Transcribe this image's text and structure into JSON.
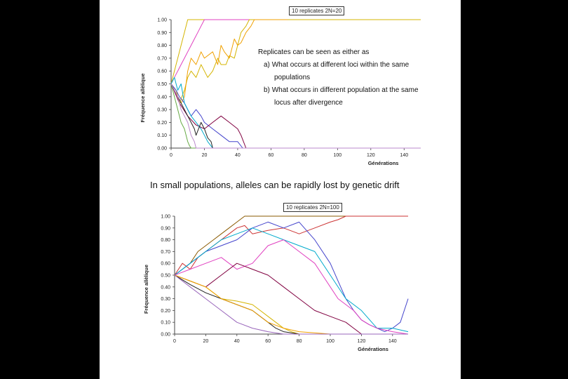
{
  "chart_data": [
    {
      "type": "line",
      "title": "10 replicates 2N=20",
      "xlabel": "Générations",
      "ylabel": "Fréquence allèlique",
      "xlim": [
        0,
        150
      ],
      "ylim": [
        0,
        1
      ],
      "x_ticks": [
        "0",
        "20",
        "40",
        "60",
        "80",
        "100",
        "120",
        "140"
      ],
      "y_ticks": [
        "0.00",
        "0.10",
        "0.20",
        "0.30",
        "0.40",
        "0.50",
        "0.60",
        "0.70",
        "0.80",
        "0.90",
        "1.00"
      ],
      "series": [
        {
          "name": "rep1",
          "color": "#d4b400",
          "x": [
            0,
            2,
            4,
            6,
            8,
            10,
            12,
            14,
            15,
            16,
            18,
            20,
            25,
            30,
            35,
            40,
            45,
            50,
            60,
            80,
            100,
            120,
            150
          ],
          "y": [
            0.5,
            0.6,
            0.7,
            0.8,
            0.9,
            1,
            1,
            1,
            1,
            1,
            1,
            1,
            1,
            1,
            1,
            1,
            1,
            1,
            1,
            1,
            1,
            1,
            1
          ]
        },
        {
          "name": "rep2",
          "color": "#e040c0",
          "x": [
            0,
            2,
            4,
            6,
            8,
            10,
            12,
            14,
            16,
            18,
            20,
            22,
            25,
            30,
            40,
            60,
            100,
            150
          ],
          "y": [
            0.5,
            0.55,
            0.6,
            0.65,
            0.7,
            0.75,
            0.8,
            0.85,
            0.9,
            0.95,
            1,
            1,
            1,
            1,
            1,
            1,
            1,
            1
          ]
        },
        {
          "name": "rep3",
          "color": "#d4b400",
          "x": [
            0,
            3,
            5,
            8,
            10,
            12,
            15,
            18,
            20,
            22,
            25,
            28,
            30,
            33,
            35,
            38,
            40,
            42,
            45,
            47,
            48,
            50,
            60,
            150
          ],
          "y": [
            0.5,
            0.45,
            0.35,
            0.45,
            0.55,
            0.6,
            0.55,
            0.65,
            0.6,
            0.55,
            0.6,
            0.7,
            0.65,
            0.65,
            0.72,
            0.7,
            0.8,
            0.9,
            0.95,
            1,
            1,
            1,
            1,
            1
          ]
        },
        {
          "name": "rep4",
          "color": "#f0a000",
          "x": [
            0,
            2,
            4,
            6,
            8,
            10,
            12,
            15,
            18,
            20,
            25,
            28,
            30,
            32,
            35,
            38,
            40,
            42,
            45,
            48,
            50,
            52,
            55,
            58,
            60,
            65,
            70
          ],
          "y": [
            0.5,
            0.45,
            0.4,
            0.35,
            0.4,
            0.6,
            0.7,
            0.65,
            0.75,
            0.7,
            0.75,
            0.65,
            0.8,
            0.75,
            0.7,
            0.85,
            0.8,
            0.82,
            0.9,
            0.95,
            1,
            1,
            1,
            1,
            1,
            1,
            1
          ]
        },
        {
          "name": "rep5",
          "color": "#4444cc",
          "x": [
            0,
            3,
            5,
            8,
            10,
            12,
            15,
            18,
            20,
            25,
            30,
            35,
            40,
            43,
            45,
            150
          ],
          "y": [
            0.5,
            0.45,
            0.4,
            0.35,
            0.3,
            0.25,
            0.3,
            0.25,
            0.2,
            0.15,
            0.1,
            0.05,
            0.05,
            0,
            0,
            0
          ]
        },
        {
          "name": "rep6",
          "color": "#800040",
          "x": [
            0,
            5,
            10,
            15,
            20,
            25,
            30,
            35,
            40,
            42,
            45,
            150
          ],
          "y": [
            0.5,
            0.35,
            0.25,
            0.18,
            0.15,
            0.2,
            0.25,
            0.2,
            0.15,
            0.1,
            0,
            0
          ]
        },
        {
          "name": "rep7",
          "color": "#00aacc",
          "x": [
            0,
            2,
            4,
            6,
            8,
            10,
            12,
            15,
            18,
            20,
            22,
            25,
            150
          ],
          "y": [
            0.5,
            0.55,
            0.45,
            0.5,
            0.35,
            0.3,
            0.25,
            0.2,
            0.15,
            0.1,
            0.05,
            0,
            0
          ]
        },
        {
          "name": "rep8",
          "color": "#222222",
          "x": [
            0,
            2,
            4,
            6,
            8,
            10,
            12,
            14,
            15,
            18,
            20,
            22,
            24,
            25,
            150
          ],
          "y": [
            0.5,
            0.45,
            0.4,
            0.35,
            0.3,
            0.25,
            0.2,
            0.15,
            0.1,
            0.2,
            0.15,
            0.08,
            0.05,
            0,
            0
          ]
        },
        {
          "name": "rep9",
          "color": "#66aa44",
          "x": [
            0,
            2,
            4,
            6,
            8,
            10,
            11,
            12,
            150
          ],
          "y": [
            0.5,
            0.4,
            0.3,
            0.2,
            0.15,
            0.05,
            0.02,
            0,
            0
          ]
        },
        {
          "name": "rep10",
          "color": "#bb88cc",
          "x": [
            0,
            2,
            4,
            6,
            8,
            10,
            12,
            14,
            15,
            150
          ],
          "y": [
            0.5,
            0.45,
            0.4,
            0.3,
            0.25,
            0.2,
            0.1,
            0.05,
            0,
            0
          ]
        }
      ]
    },
    {
      "type": "line",
      "title": "10 replicates 2N=100",
      "xlabel": "Générations",
      "ylabel": "Fréquence allèlique",
      "xlim": [
        0,
        150
      ],
      "ylim": [
        0,
        1
      ],
      "x_ticks": [
        "0",
        "20",
        "40",
        "60",
        "80",
        "100",
        "120",
        "140"
      ],
      "y_ticks": [
        "0.00",
        "0.10",
        "0.20",
        "0.30",
        "0.40",
        "0.50",
        "0.60",
        "0.70",
        "0.80",
        "0.90",
        "1.00"
      ],
      "series": [
        {
          "name": "rep1",
          "color": "#8a5a00",
          "x": [
            0,
            5,
            10,
            15,
            20,
            25,
            30,
            35,
            40,
            45,
            50,
            60,
            80,
            100,
            120,
            150
          ],
          "y": [
            0.5,
            0.55,
            0.6,
            0.7,
            0.75,
            0.8,
            0.85,
            0.9,
            0.95,
            1,
            1,
            1,
            1,
            1,
            1,
            1
          ]
        },
        {
          "name": "rep2",
          "color": "#cc3333",
          "x": [
            0,
            5,
            10,
            15,
            20,
            25,
            30,
            35,
            40,
            45,
            50,
            60,
            70,
            80,
            90,
            100,
            105,
            110,
            150
          ],
          "y": [
            0.5,
            0.6,
            0.55,
            0.65,
            0.7,
            0.75,
            0.8,
            0.85,
            0.9,
            0.92,
            0.85,
            0.88,
            0.9,
            0.85,
            0.9,
            0.95,
            0.97,
            1,
            1
          ]
        },
        {
          "name": "rep3",
          "color": "#4444cc",
          "x": [
            0,
            10,
            20,
            30,
            40,
            50,
            60,
            70,
            80,
            90,
            100,
            105,
            110,
            115,
            120,
            125,
            130,
            135,
            140,
            145,
            150
          ],
          "y": [
            0.5,
            0.6,
            0.7,
            0.75,
            0.8,
            0.9,
            0.95,
            0.9,
            0.95,
            0.8,
            0.6,
            0.45,
            0.3,
            0.2,
            0.12,
            0.08,
            0.05,
            0.02,
            0.05,
            0.1,
            0.3
          ]
        },
        {
          "name": "rep4",
          "color": "#00aacc",
          "x": [
            0,
            10,
            20,
            30,
            40,
            50,
            60,
            70,
            80,
            90,
            100,
            110,
            120,
            130,
            140,
            150
          ],
          "y": [
            0.5,
            0.6,
            0.7,
            0.8,
            0.85,
            0.9,
            0.85,
            0.8,
            0.75,
            0.7,
            0.5,
            0.3,
            0.2,
            0.05,
            0.05,
            0.02
          ]
        },
        {
          "name": "rep5",
          "color": "#e040c0",
          "x": [
            0,
            10,
            20,
            30,
            40,
            50,
            60,
            70,
            80,
            90,
            95,
            100,
            105,
            110,
            115,
            120,
            125,
            130,
            140,
            150
          ],
          "y": [
            0.5,
            0.55,
            0.6,
            0.65,
            0.55,
            0.6,
            0.75,
            0.8,
            0.7,
            0.6,
            0.5,
            0.4,
            0.3,
            0.25,
            0.2,
            0.12,
            0.08,
            0.05,
            0.02,
            0
          ]
        },
        {
          "name": "rep6",
          "color": "#800040",
          "x": [
            0,
            10,
            20,
            30,
            40,
            50,
            60,
            70,
            80,
            90,
            100,
            110,
            115,
            120,
            130,
            150
          ],
          "y": [
            0.5,
            0.45,
            0.4,
            0.5,
            0.6,
            0.55,
            0.5,
            0.4,
            0.3,
            0.2,
            0.15,
            0.1,
            0.05,
            0,
            0,
            0
          ]
        },
        {
          "name": "rep7",
          "color": "#d4b400",
          "x": [
            0,
            10,
            20,
            30,
            40,
            50,
            55,
            60,
            65,
            70,
            75,
            80,
            150
          ],
          "y": [
            0.5,
            0.45,
            0.4,
            0.3,
            0.28,
            0.25,
            0.2,
            0.15,
            0.1,
            0.05,
            0.02,
            0,
            0
          ]
        },
        {
          "name": "rep8",
          "color": "#222222",
          "x": [
            0,
            10,
            20,
            30,
            40,
            50,
            55,
            60,
            65,
            70,
            75,
            80,
            150
          ],
          "y": [
            0.5,
            0.42,
            0.35,
            0.3,
            0.25,
            0.2,
            0.15,
            0.1,
            0.05,
            0.02,
            0.01,
            0,
            0
          ]
        },
        {
          "name": "rep9",
          "color": "#f0a000",
          "x": [
            0,
            10,
            20,
            30,
            40,
            50,
            60,
            70,
            80,
            90,
            100,
            110,
            150
          ],
          "y": [
            0.5,
            0.45,
            0.4,
            0.3,
            0.25,
            0.2,
            0.1,
            0.05,
            0.02,
            0.01,
            0,
            0,
            0
          ]
        },
        {
          "name": "rep10",
          "color": "#9966bb",
          "x": [
            0,
            10,
            20,
            30,
            40,
            50,
            60,
            70,
            150
          ],
          "y": [
            0.5,
            0.4,
            0.3,
            0.2,
            0.1,
            0.05,
            0.02,
            0,
            0
          ]
        }
      ]
    }
  ],
  "notes": {
    "intro": "Replicates can be seen as either as",
    "item_a_marker": "a)",
    "item_a_line1": "What occurs at different loci within the same",
    "item_a_line2": "populations",
    "item_b_marker": "b)",
    "item_b_line1": "What occurs in different population at the same",
    "item_b_line2": "locus after divergence"
  },
  "caption": "In small populations, alleles can be rapidly lost by genetic drift"
}
